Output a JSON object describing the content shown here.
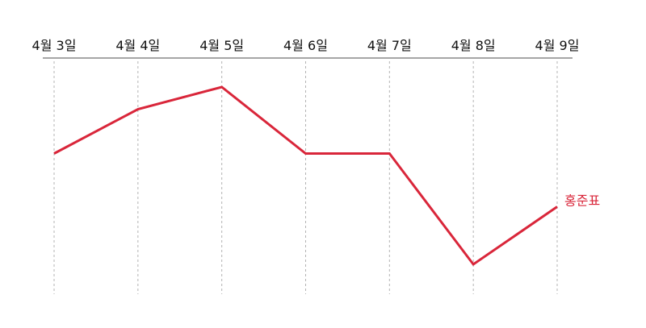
{
  "chart_data": {
    "type": "line",
    "title": "",
    "xlabel": "",
    "ylabel": "",
    "x": [
      "4월 3일",
      "4월 4일",
      "4월 5일",
      "4월 6일",
      "4월 7일",
      "4월 8일",
      "4월 9일"
    ],
    "series": [
      {
        "name": "홍준표",
        "color": "#d9263a",
        "values": [
          5,
          6,
          6.5,
          5,
          5,
          2.5,
          3.8
        ]
      }
    ],
    "ylim": [
      1,
      7.5
    ],
    "grid": "vertical-dashed",
    "axis_position": "top",
    "legend": "end-of-line label"
  }
}
